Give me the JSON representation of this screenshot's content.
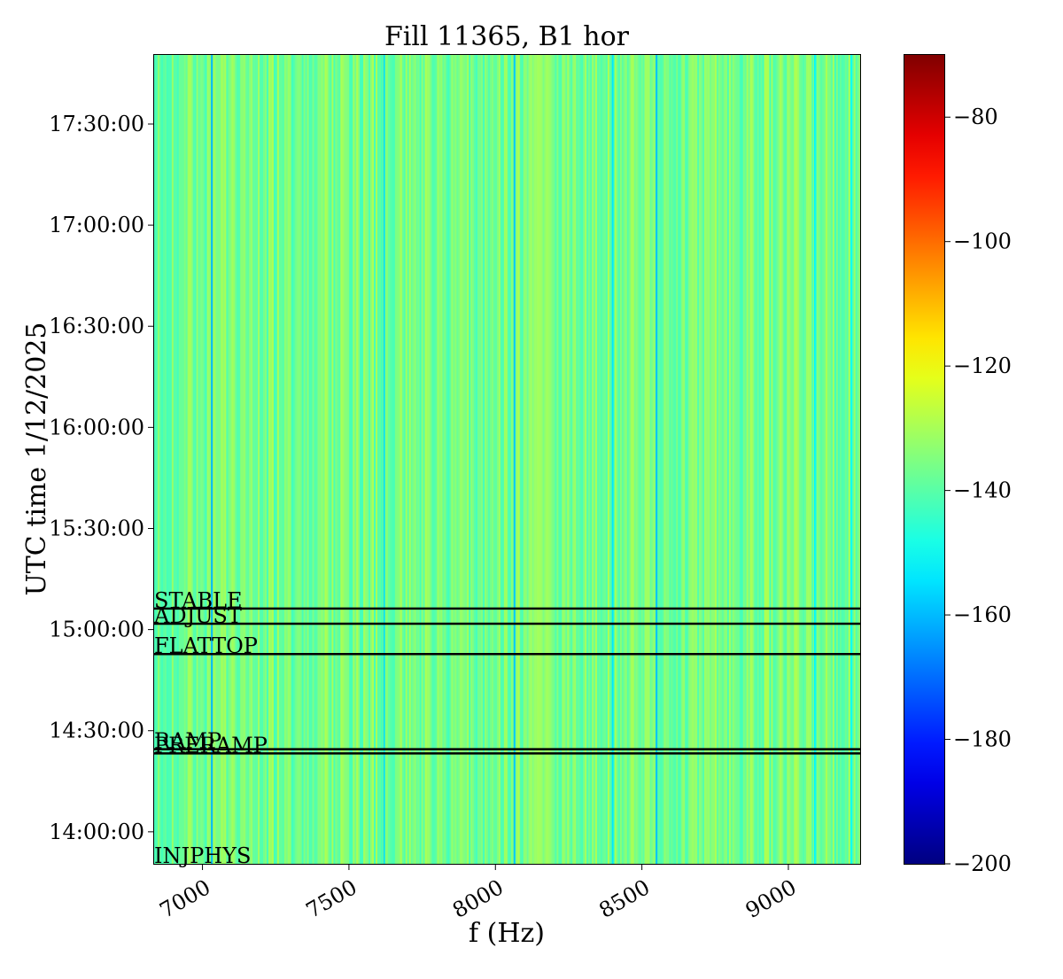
{
  "chart_data": {
    "type": "heatmap",
    "title": "Fill 11365, B1 hor",
    "xlabel": "f (Hz)",
    "ylabel": "UTC time 1/12/2025",
    "xlim": [
      6835,
      9245
    ],
    "ylim_time": [
      "13:50:30",
      "17:50:30"
    ],
    "x_ticks": [
      {
        "value": 7000,
        "label": "7000"
      },
      {
        "value": 7500,
        "label": "7500"
      },
      {
        "value": 8000,
        "label": "8000"
      },
      {
        "value": 8500,
        "label": "8500"
      },
      {
        "value": 9000,
        "label": "9000"
      }
    ],
    "y_ticks": [
      {
        "value": "14:00:00",
        "label": "14:00:00"
      },
      {
        "value": "14:30:00",
        "label": "14:30:00"
      },
      {
        "value": "15:00:00",
        "label": "15:00:00"
      },
      {
        "value": "15:30:00",
        "label": "15:30:00"
      },
      {
        "value": "16:00:00",
        "label": "16:00:00"
      },
      {
        "value": "16:30:00",
        "label": "16:30:00"
      },
      {
        "value": "17:00:00",
        "label": "17:00:00"
      },
      {
        "value": "17:30:00",
        "label": "17:30:00"
      }
    ],
    "colorbar": {
      "colormap": "jet",
      "range": [
        -200,
        -70
      ],
      "ticks": [
        {
          "value": -80,
          "label": "−80"
        },
        {
          "value": -100,
          "label": "−100"
        },
        {
          "value": -120,
          "label": "−120"
        },
        {
          "value": -140,
          "label": "−140"
        },
        {
          "value": -160,
          "label": "−160"
        },
        {
          "value": -180,
          "label": "−180"
        },
        {
          "value": -200,
          "label": "−200"
        }
      ]
    },
    "spectrum_baseline_db": -136,
    "spectral_lines": [
      {
        "freq": 7032,
        "level": -160
      },
      {
        "freq": 7620,
        "level": -155
      },
      {
        "freq": 8065,
        "level": -158
      },
      {
        "freq": 8400,
        "level": -154
      },
      {
        "freq": 8550,
        "level": -159
      },
      {
        "freq": 9090,
        "level": -152
      },
      {
        "freq": 9215,
        "level": -150
      }
    ],
    "annotations": [
      {
        "label": "STABLE",
        "time": "15:06:15"
      },
      {
        "label": "ADJUST",
        "time": "15:01:45"
      },
      {
        "label": "FLATTOP",
        "time": "14:52:45"
      },
      {
        "label": "RAMP",
        "time": "14:24:30"
      },
      {
        "label": "PRERAMP",
        "time": "14:23:15"
      },
      {
        "label": "INJPHYS",
        "time": "13:50:30"
      }
    ]
  }
}
